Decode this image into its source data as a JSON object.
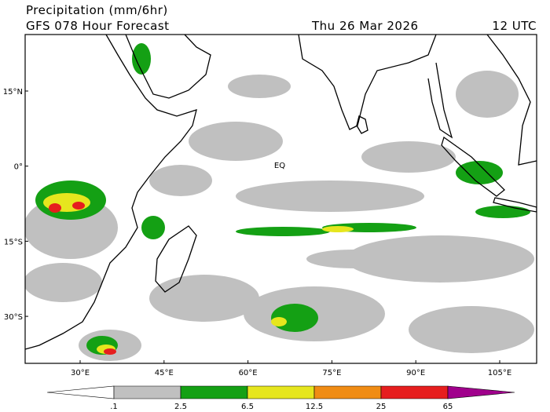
{
  "header": {
    "title": "Precipitation (mm/6hr)",
    "subtitle": "GFS 078 Hour Forecast",
    "date": "Thu 26 Mar 2026",
    "time": "12 UTC"
  },
  "map": {
    "lat_labels": [
      "15°N",
      "0°",
      "15°S",
      "30°S"
    ],
    "lon_labels": [
      "30°E",
      "45°E",
      "60°E",
      "75°E",
      "90°E",
      "105°E"
    ],
    "equator_label": "EQ"
  },
  "colorbar": {
    "labels": [
      ".1",
      "2.5",
      "6.5",
      "12.5",
      "25",
      "65"
    ],
    "colors": [
      "#ffffff",
      "#c0c0c0",
      "#14a014",
      "#e6e61e",
      "#f08c14",
      "#e61e1e",
      "#a0008c"
    ]
  }
}
